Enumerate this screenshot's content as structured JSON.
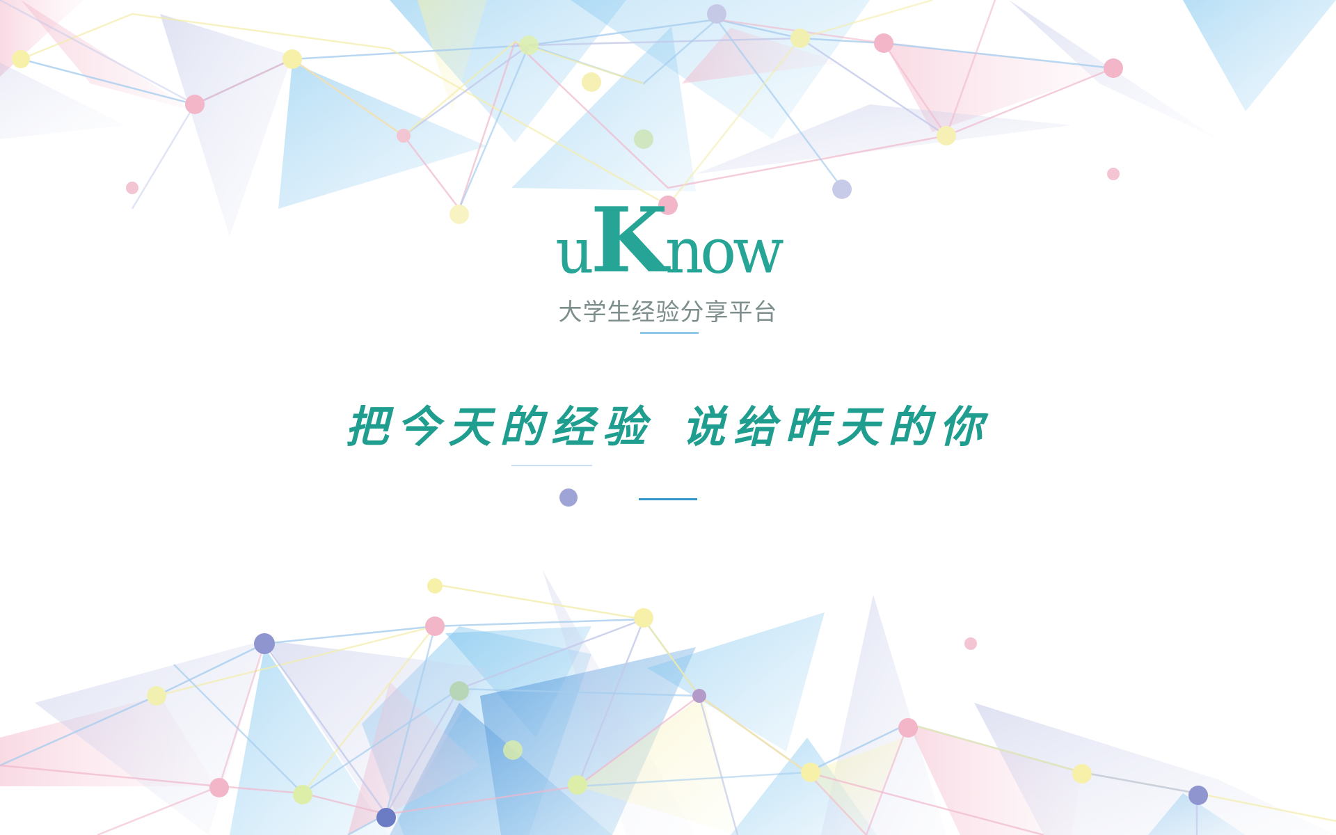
{
  "brand": {
    "logo_prefix": "u",
    "logo_k": "K",
    "logo_suffix": "now",
    "subtitle": "大学生经验分享平台",
    "slogan_part1": "把今天的经验",
    "slogan_part2": "说给昨天的你"
  },
  "colors": {
    "logo": "#26a596",
    "subtitle": "#7d8e8d",
    "slogan": "#1f9e8f",
    "accent_line": "#3296c8",
    "mark_dot": "#9fa4d6"
  },
  "icons": {
    "decoration": "low-poly-network-graphic",
    "separator": "dot-dash-separator"
  }
}
